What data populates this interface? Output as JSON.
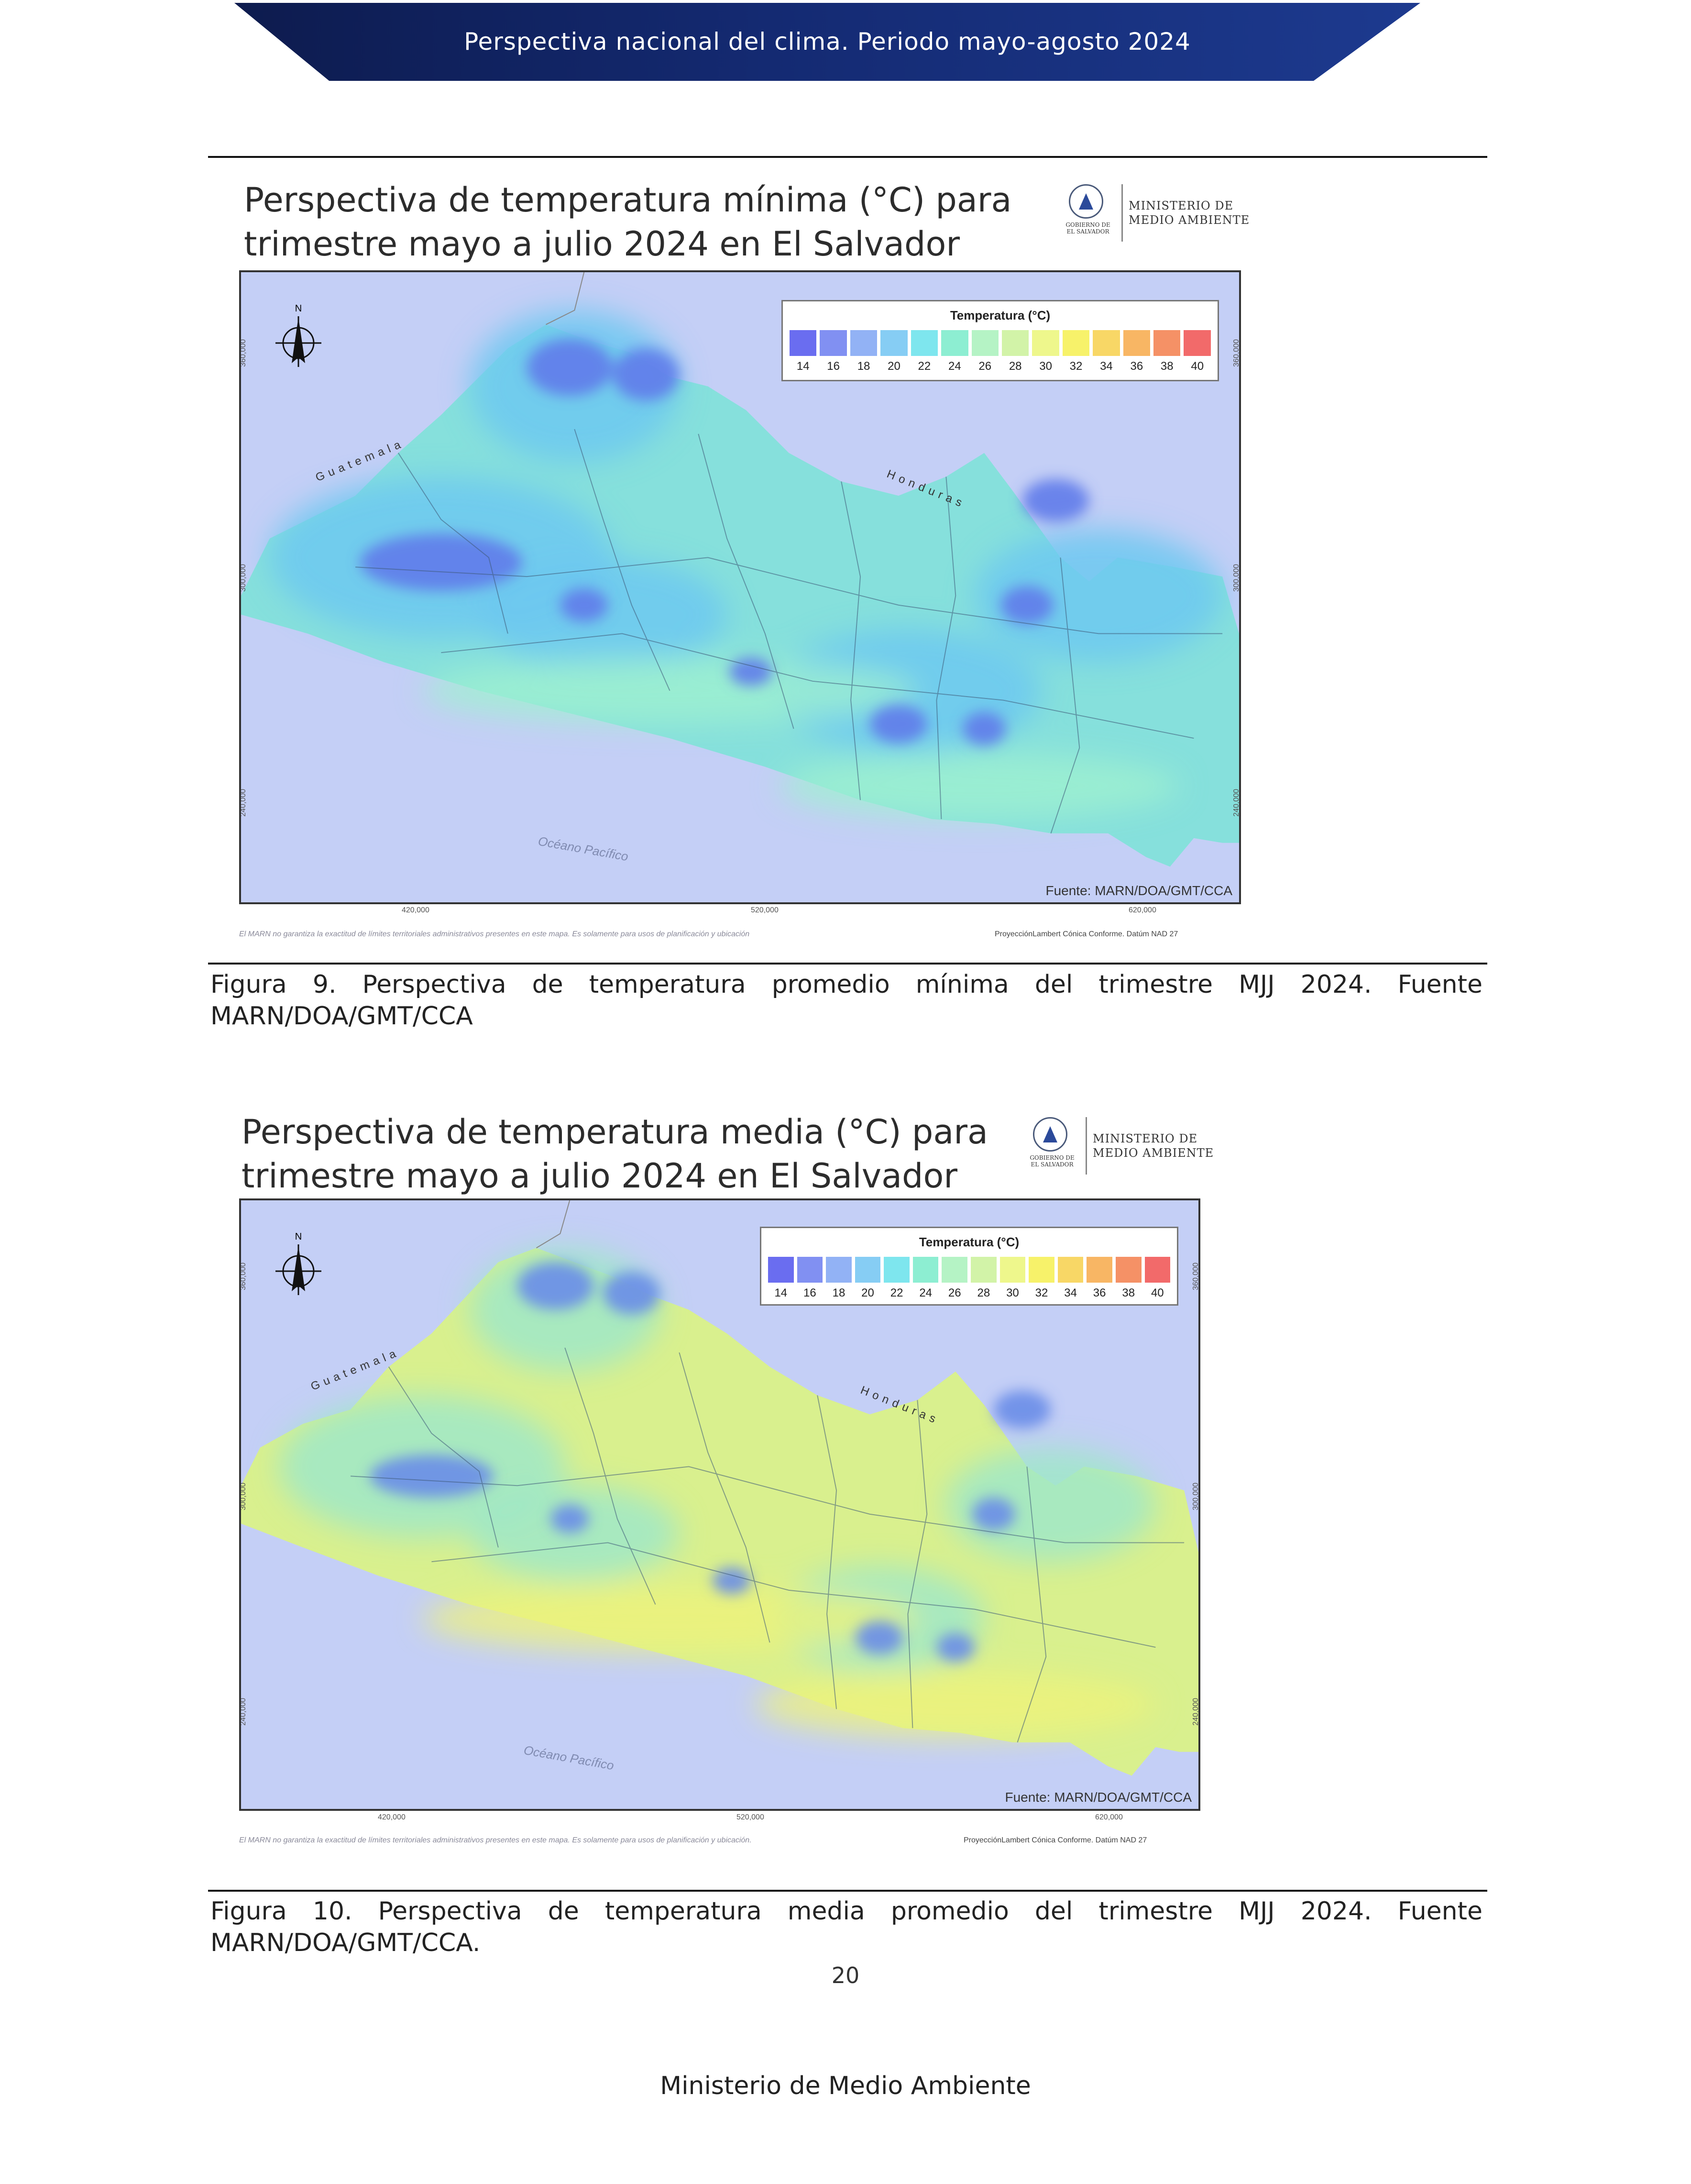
{
  "header": {
    "banner_text": "Perspectiva nacional del clima. Periodo mayo-agosto 2024"
  },
  "figures": [
    {
      "title_line1": "Perspectiva de temperatura mínima (°C) para",
      "title_line2": "trimestre mayo a julio 2024 en El Salvador",
      "logo_gov": "GOBIERNO DE EL SALVADOR",
      "logo_text": "MINISTERIO DE\nMEDIO AMBIENTE",
      "legend_title": "Temperatura (°C)",
      "legend_labels": [
        "14",
        "16",
        "18",
        "20",
        "22",
        "24",
        "26",
        "28",
        "30",
        "32",
        "34",
        "36",
        "38",
        "40"
      ],
      "legend_colors": [
        "#6a6df0",
        "#8190f2",
        "#92b2f5",
        "#86cdf4",
        "#7ee6ee",
        "#8deed2",
        "#b5f3c5",
        "#d2f3a8",
        "#eef78c",
        "#f7f26a",
        "#f8d766",
        "#f8b664",
        "#f59166",
        "#f26a6a"
      ],
      "country_guatemala": "Guatemala",
      "country_honduras": "Honduras",
      "ocean": "Océano Pacífico",
      "coords_x": [
        "420,000",
        "520,000",
        "620,000"
      ],
      "coords_y": [
        "360,000",
        "300,000",
        "240,000"
      ],
      "north": "N",
      "source": "Fuente: MARN/DOA/GMT/CCA",
      "disclaimer": "El MARN no garantiza la exactitud de límites territoriales administrativos presentes en este mapa. Es solamente para usos de planificación y ubicación",
      "projection": "ProyecciónLambert Cónica Conforme. Datúm NAD 27",
      "caption": "Figura 9. Perspectiva de temperatura promedio mínima del trimestre MJJ 2024. Fuente MARN/DOA/GMT/CCA",
      "palette": {
        "land": "#86e0dc",
        "cool": "#6cc8f0",
        "cold": "#5f7cea",
        "coast": "#9ff0d0"
      }
    },
    {
      "title_line1": "Perspectiva de temperatura media (°C) para",
      "title_line2": "trimestre mayo a julio 2024 en El Salvador",
      "logo_gov": "GOBIERNO DE EL SALVADOR",
      "logo_text": "MINISTERIO DE\nMEDIO AMBIENTE",
      "legend_title": "Temperatura (°C)",
      "legend_labels": [
        "14",
        "16",
        "18",
        "20",
        "22",
        "24",
        "26",
        "28",
        "30",
        "32",
        "34",
        "36",
        "38",
        "40"
      ],
      "legend_colors": [
        "#6a6df0",
        "#8190f2",
        "#92b2f5",
        "#86cdf4",
        "#7ee6ee",
        "#8deed2",
        "#b5f3c5",
        "#d2f3a8",
        "#eef78c",
        "#f7f26a",
        "#f8d766",
        "#f8b664",
        "#f59166",
        "#f26a6a"
      ],
      "country_guatemala": "Guatemala",
      "country_honduras": "Honduras",
      "ocean": "Océano Pacífico",
      "coords_x": [
        "420,000",
        "520,000",
        "620,000"
      ],
      "coords_y": [
        "360,000",
        "300,000",
        "240,000"
      ],
      "north": "N",
      "source": "Fuente: MARN/DOA/GMT/CCA",
      "disclaimer": "El MARN no garantiza la exactitud de límites territoriales administrativos presentes en este mapa. Es solamente para usos de planificación y ubicación.",
      "projection": "ProyecciónLambert Cónica Conforme. Datúm NAD 27",
      "caption": "Figura 10. Perspectiva de temperatura media promedio del trimestre MJJ 2024. Fuente MARN/DOA/GMT/CCA.",
      "palette": {
        "land": "#d9f08e",
        "cool": "#9fe8c8",
        "cold": "#6a8de8",
        "coast": "#eef27a"
      }
    }
  ],
  "page_number": "20",
  "footer": "Ministerio de Medio Ambiente"
}
